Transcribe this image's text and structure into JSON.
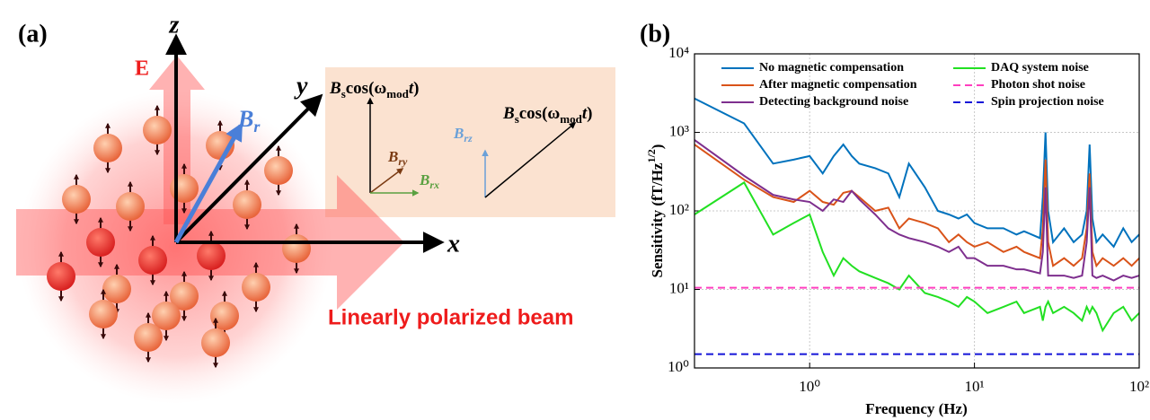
{
  "panel_a": {
    "tag": "(a)",
    "axis_z": "z",
    "axis_y": "y",
    "axis_x": "x",
    "efield": "E",
    "beam": "Linearly polarized beam",
    "b_r": [
      "B",
      "r"
    ],
    "b_ry": [
      "B",
      "ry"
    ],
    "b_rx": [
      "B",
      "rx"
    ],
    "b_rz": [
      "B",
      "rz"
    ],
    "field_labels": [
      [
        "B",
        "s",
        "cos(ω",
        "mod",
        "t",
        ")"
      ],
      [
        "B",
        "s",
        "cos(ω",
        "mod",
        "t",
        ")"
      ]
    ]
  },
  "chart_data": {
    "type": "line",
    "tag": "(b)",
    "xlabel": "Frequency (Hz)",
    "ylabel": [
      "Sensitivity (fT/Hz",
      "1/2",
      ")"
    ],
    "log_x": true,
    "log_y": true,
    "grid": true,
    "xlim": [
      0.2,
      100
    ],
    "ylim": [
      1,
      10000
    ],
    "xticks": [
      {
        "value": 1,
        "label": "10⁰"
      },
      {
        "value": 10,
        "label": "10¹"
      },
      {
        "value": 100,
        "label": "10²"
      }
    ],
    "yticks": [
      {
        "value": 1,
        "label": "10⁰"
      },
      {
        "value": 10,
        "label": "10¹"
      },
      {
        "value": 100,
        "label": "10²"
      },
      {
        "value": 1000,
        "label": "10³"
      },
      {
        "value": 10000,
        "label": "10⁴"
      }
    ],
    "x": [
      0.2,
      0.4,
      0.6,
      0.8,
      1,
      1.2,
      1.4,
      1.6,
      1.8,
      2,
      2.5,
      3,
      3.5,
      4,
      5,
      6,
      7,
      8,
      9,
      10,
      12,
      15,
      18,
      20,
      25,
      26,
      27,
      28,
      30,
      35,
      40,
      45,
      48,
      50,
      52,
      55,
      60,
      70,
      80,
      90,
      100
    ],
    "series": [
      {
        "name": "No magnetic compensation",
        "color": "#0072bd",
        "values": [
          2700,
          1300,
          400,
          450,
          500,
          300,
          500,
          700,
          500,
          400,
          350,
          300,
          150,
          400,
          200,
          100,
          90,
          80,
          90,
          70,
          60,
          60,
          50,
          55,
          45,
          150,
          1000,
          100,
          40,
          60,
          40,
          50,
          100,
          700,
          80,
          40,
          50,
          35,
          60,
          40,
          50
        ]
      },
      {
        "name": "After magnetic compensation",
        "color": "#d95319",
        "values": [
          700,
          250,
          150,
          130,
          180,
          130,
          120,
          170,
          180,
          150,
          100,
          110,
          60,
          80,
          70,
          60,
          40,
          50,
          40,
          35,
          40,
          30,
          35,
          30,
          25,
          60,
          450,
          40,
          20,
          25,
          20,
          25,
          60,
          300,
          30,
          20,
          25,
          20,
          25,
          20,
          25
        ]
      },
      {
        "name": "Detecting background noise",
        "color": "#7e2f8e",
        "values": [
          800,
          280,
          160,
          140,
          130,
          100,
          140,
          130,
          180,
          140,
          90,
          60,
          50,
          45,
          40,
          35,
          30,
          35,
          25,
          25,
          20,
          20,
          18,
          18,
          16,
          30,
          200,
          15,
          15,
          15,
          14,
          15,
          40,
          200,
          15,
          14,
          15,
          13,
          15,
          14,
          15
        ]
      },
      {
        "name": "DAQ system noise",
        "color": "#22e022",
        "values": [
          90,
          230,
          50,
          70,
          90,
          30,
          15,
          25,
          20,
          17,
          14,
          12,
          10,
          15,
          9,
          8,
          7,
          6,
          8,
          7,
          5,
          6,
          7,
          5,
          6,
          4,
          6,
          7,
          5,
          6,
          5,
          4,
          6,
          5,
          6,
          5,
          3,
          5,
          6,
          4,
          5
        ]
      },
      {
        "name": "Photon shot noise",
        "color": "#ff3fbf",
        "dashed": true,
        "x": [
          0.2,
          100
        ],
        "values": [
          10.5,
          10.5
        ]
      },
      {
        "name": "Spin projection noise",
        "color": "#1515d8",
        "dashed": true,
        "x": [
          0.2,
          100
        ],
        "values": [
          1.5,
          1.5
        ]
      }
    ]
  }
}
